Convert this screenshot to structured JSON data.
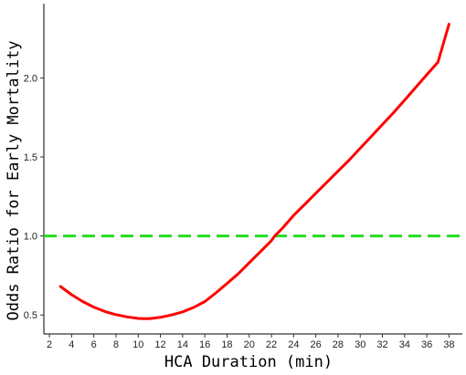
{
  "chart_data": {
    "type": "line",
    "title": "",
    "xlabel": "HCA Duration (min)",
    "ylabel": "Odds Ratio for Early Mortality",
    "xlim": [
      1.5,
      39.2
    ],
    "ylim": [
      0.38,
      2.47
    ],
    "x_ticks": [
      "2",
      "4",
      "6",
      "8",
      "10",
      "12",
      "14",
      "16",
      "18",
      "20",
      "22",
      "24",
      "26",
      "28",
      "30",
      "32",
      "34",
      "36",
      "38"
    ],
    "y_ticks": [
      "0.5",
      "1.0",
      "1.5",
      "2.0"
    ],
    "grid": false,
    "legend": "none",
    "series": [
      {
        "color": "#ff0000",
        "line_style": "solid",
        "x": [
          3,
          4,
          5,
          6,
          7,
          8,
          9,
          10,
          10.5,
          11,
          12,
          13,
          14,
          15,
          16,
          17,
          18,
          19,
          20,
          21,
          22,
          22.3,
          23,
          24,
          25,
          26,
          27,
          28,
          29,
          30,
          31,
          32,
          33,
          34,
          35,
          36,
          37,
          38
        ],
        "y": [
          0.68,
          0.628,
          0.585,
          0.55,
          0.522,
          0.502,
          0.488,
          0.478,
          0.477,
          0.477,
          0.485,
          0.5,
          0.52,
          0.548,
          0.585,
          0.64,
          0.7,
          0.76,
          0.83,
          0.9,
          0.97,
          1.0,
          1.05,
          1.13,
          1.2,
          1.27,
          1.34,
          1.41,
          1.48,
          1.555,
          1.63,
          1.705,
          1.78,
          1.86,
          1.94,
          2.02,
          2.1,
          2.34
        ]
      }
    ],
    "reference_line": {
      "y": 1.0,
      "color": "#22dd22",
      "line_style": "dashed"
    }
  }
}
